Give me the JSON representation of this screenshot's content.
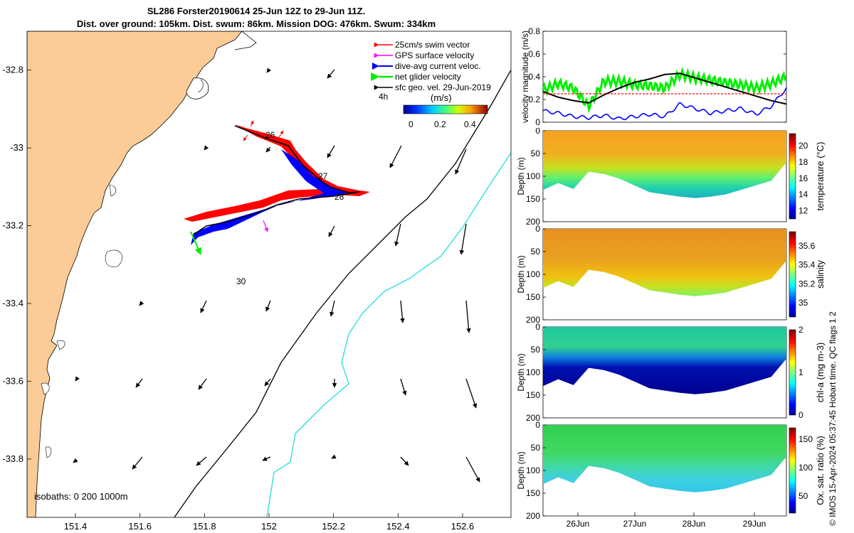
{
  "title": {
    "line1": "SL286 Forster20190614 25-Jun 12Z to 29-Jun 11Z.",
    "line2": "Dist. over ground: 105km. Dist. swum: 86km. Mission DOG: 476km. Swum: 334km"
  },
  "colors": {
    "land": "#fbcc97",
    "swim_vector": "#ff0000",
    "gps_velocity": "#ff00ff",
    "dive_avg_current": "#0000ff",
    "net_glider_velocity": "#00ee00",
    "sfc_geo_vel": "#000000",
    "isobath_200": "#000000",
    "isobath_1000": "#22dddd"
  },
  "map": {
    "legend": [
      {
        "label": "25cm/s swim vector",
        "color": "#ff0000"
      },
      {
        "label": "GPS surface velocity",
        "color": "#ff00ff"
      },
      {
        "label": "dive-avg current veloc.",
        "color": "#0000ff"
      },
      {
        "label": "net glider velocity",
        "color": "#00ee00"
      },
      {
        "label": "sfc geo. vel. 29-Jun-2019",
        "color": "#000000"
      }
    ],
    "duration_label": "4h",
    "colorbar_label": "(m/s)",
    "colorbar_ticks": [
      "0",
      "0.2",
      "0.4"
    ],
    "isobaths_label": "isobaths: 0   200  1000m",
    "day_labels": [
      "26",
      "27",
      "28",
      "30"
    ],
    "x_ticks": [
      "151.4",
      "151.6",
      "151.8",
      "152",
      "152.2",
      "152.4",
      "152.6"
    ],
    "y_ticks": [
      "-32.8",
      "-33",
      "-33.2",
      "-33.4",
      "-33.6",
      "-33.8"
    ]
  },
  "velocity_panel": {
    "ylabel": "velocity magnitude (m/s)",
    "y_ticks": [
      "0",
      "0.2",
      "0.4",
      "0.6",
      "0.8"
    ]
  },
  "sections": [
    {
      "ylabel": "Depth (m)",
      "cbar_label": "temperature (°C)",
      "cbar_ticks": [
        "12",
        "14",
        "16",
        "18",
        "20"
      ],
      "y_ticks": [
        "0",
        "50",
        "100",
        "150",
        "200"
      ]
    },
    {
      "ylabel": "Depth (m)",
      "cbar_label": "salinity",
      "cbar_ticks": [
        "35",
        "35.2",
        "35.4",
        "35.6"
      ],
      "y_ticks": [
        "0",
        "50",
        "100",
        "150",
        "200"
      ]
    },
    {
      "ylabel": "Depth (m)",
      "cbar_label": "chl-a (mg m-3)",
      "cbar_ticks": [
        "0",
        "1",
        "2"
      ],
      "y_ticks": [
        "0",
        "50",
        "100",
        "150",
        "200"
      ]
    },
    {
      "ylabel": "Depth (m)",
      "cbar_label": "Ox. sat. ratio (%)",
      "cbar_ticks": [
        "50",
        "100",
        "150"
      ],
      "y_ticks": [
        "0",
        "50",
        "100",
        "150",
        "200"
      ]
    }
  ],
  "time_ticks": [
    "26Jun",
    "27Jun",
    "28Jun",
    "29Jun"
  ],
  "side_note": "© IMOS 15-Apr-2024 05:37:45 Hobart time. QC flags 1  2",
  "chart_data": [
    {
      "type": "scatter",
      "xlabel": "",
      "ylabel": "",
      "xlim": [
        151.25,
        152.75
      ],
      "ylim": [
        -33.95,
        -32.7
      ],
      "tick_labels_x": [
        "151.4",
        "151.6",
        "151.8",
        "152",
        "152.2",
        "152.4",
        "152.6"
      ],
      "tick_labels_y": [
        "-32.8",
        "-33",
        "-33.2",
        "-33.4",
        "-33.6",
        "-33.8"
      ],
      "glider_track": {
        "lon": [
          151.9,
          152.0,
          152.08,
          152.13,
          152.2,
          152.1,
          151.98,
          151.88,
          151.78,
          151.74
        ],
        "lat": [
          -32.95,
          -32.98,
          -33.03,
          -33.09,
          -33.13,
          -33.15,
          -33.19,
          -33.2,
          -33.22,
          -33.25
        ]
      },
      "series": [
        {
          "name": "25cm/s swim vector"
        },
        {
          "name": "GPS surface velocity"
        },
        {
          "name": "dive-avg current veloc."
        },
        {
          "name": "net glider velocity"
        },
        {
          "name": "sfc geo. vel. 29-Jun-2019"
        }
      ]
    },
    {
      "type": "line",
      "ylabel": "velocity magnitude (m/s)",
      "ylim": [
        0,
        0.8
      ],
      "x": [
        "25.5Jun",
        "25.75Jun",
        "26Jun",
        "26.25Jun",
        "26.5Jun",
        "26.75Jun",
        "27Jun",
        "27.25Jun",
        "27.5Jun",
        "27.75Jun",
        "28Jun",
        "28.25Jun",
        "28.5Jun",
        "28.75Jun",
        "29Jun",
        "29.25Jun",
        "29.45Jun"
      ],
      "series": [
        {
          "name": "net glider velocity",
          "values": [
            0.28,
            0.34,
            0.3,
            0.14,
            0.36,
            0.36,
            0.33,
            0.32,
            0.3,
            0.42,
            0.39,
            0.37,
            0.35,
            0.33,
            0.3,
            0.34,
            0.4
          ]
        },
        {
          "name": "sfc geo. vel.",
          "values": [
            0.27,
            0.22,
            0.19,
            0.17,
            0.24,
            0.3,
            0.35,
            0.38,
            0.42,
            0.43,
            0.39,
            0.35,
            0.31,
            0.27,
            0.23,
            0.19,
            0.16
          ]
        },
        {
          "name": "dive-avg current veloc.",
          "values": [
            0.1,
            0.08,
            0.05,
            0.04,
            0.06,
            0.03,
            0.05,
            0.07,
            0.05,
            0.16,
            0.12,
            0.08,
            0.1,
            0.12,
            0.07,
            0.14,
            0.3
          ]
        },
        {
          "name": "25cm/s swim vector",
          "values": [
            0.25,
            0.25,
            0.25,
            0.25,
            0.25,
            0.25,
            0.25,
            0.25,
            0.25,
            0.25,
            0.25,
            0.25,
            0.25,
            0.25,
            0.25,
            0.25,
            0.25
          ]
        }
      ]
    },
    {
      "type": "heatmap",
      "ylabel": "Depth (m)",
      "ylim": [
        200,
        0
      ],
      "colorbar": "temperature (°C)",
      "clim": [
        11,
        21.5
      ]
    },
    {
      "type": "heatmap",
      "ylabel": "Depth (m)",
      "ylim": [
        200,
        0
      ],
      "colorbar": "salinity",
      "clim": [
        34.85,
        35.75
      ]
    },
    {
      "type": "heatmap",
      "ylabel": "Depth (m)",
      "ylim": [
        200,
        0
      ],
      "colorbar": "chl-a (mg m-3)",
      "clim": [
        0,
        2
      ]
    },
    {
      "type": "heatmap",
      "ylabel": "Depth (m)",
      "ylim": [
        200,
        0
      ],
      "colorbar": "Ox. sat. ratio (%)",
      "clim": [
        20,
        170
      ]
    }
  ]
}
